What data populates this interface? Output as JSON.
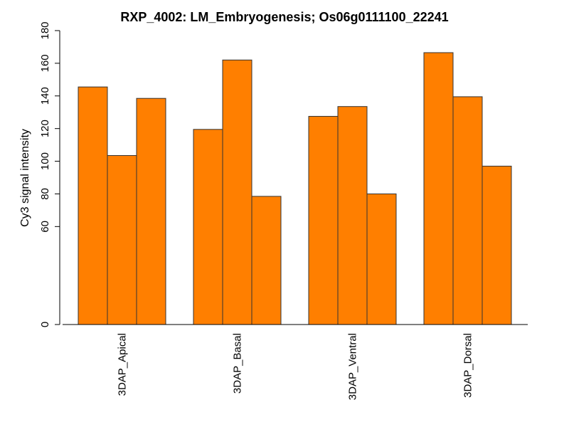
{
  "chart_data": {
    "type": "bar",
    "title": "RXP_4002: LM_Embryogenesis; Os06g0111100_22241",
    "xlabel": "",
    "ylabel": "Cy3 signal intensity",
    "ylim": [
      0,
      180
    ],
    "y_ticks": [
      0,
      60,
      80,
      100,
      120,
      140,
      160,
      180
    ],
    "y_tick_labels": [
      "0",
      "60",
      "80",
      "100",
      "120",
      "140",
      "160",
      "180"
    ],
    "grid": false,
    "legend": "none",
    "bar_color": "#ff7f00",
    "bar_border_color": "#333333",
    "categories": [
      "3DAP_Apical",
      "3DAP_Basal",
      "3DAP_Ventral",
      "3DAP_Dorsal"
    ],
    "groups": [
      {
        "category": "3DAP_Apical",
        "values": [
          145.5,
          103.5,
          138.5
        ]
      },
      {
        "category": "3DAP_Basal",
        "values": [
          119.5,
          162.0,
          78.5
        ]
      },
      {
        "category": "3DAP_Ventral",
        "values": [
          127.5,
          133.5,
          80.0
        ]
      },
      {
        "category": "3DAP_Dorsal",
        "values": [
          166.5,
          139.5,
          97.0
        ]
      }
    ]
  }
}
